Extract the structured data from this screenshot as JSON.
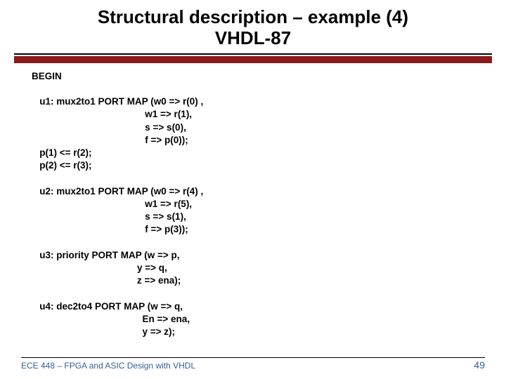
{
  "title_line1": "Structural description – example (4)",
  "title_line2": "VHDL-87",
  "colors": {
    "accent_bar": "#8b1a1a",
    "thin_rule": "#000000",
    "footer_text": "#376092",
    "body_text": "#000000",
    "background": "#ffffff"
  },
  "fonts": {
    "title_size_pt": 26,
    "body_size_pt": 13.5,
    "footer_size_pt": 12,
    "pagenum_size_pt": 14,
    "weight": "bold"
  },
  "code": {
    "begin": "BEGIN",
    "u1_l1": "   u1: mux2to1 PORT MAP (w0 => r(0) ,",
    "u1_l2": "                                           w1 => r(1),",
    "u1_l3": "                                           s => s(0),",
    "u1_l4": "                                           f => p(0));",
    "p1": "   p(1) <= r(2);",
    "p2": "   p(2) <= r(3);",
    "u2_l1": "   u2: mux2to1 PORT MAP (w0 => r(4) ,",
    "u2_l2": "                                           w1 => r(5),",
    "u2_l3": "                                           s => s(1),",
    "u2_l4": "                                           f => p(3));",
    "u3_l1": "   u3: priority PORT MAP (w => p,",
    "u3_l2": "                                        y => q,",
    "u3_l3": "                                        z => ena);",
    "u4_l1": "   u4: dec2to4 PORT MAP (w => q,",
    "u4_l2": "                                          En => ena,",
    "u4_l3": "                                          y => z);"
  },
  "footer": {
    "course": "ECE 448 – FPGA and ASIC Design with VHDL",
    "pagenum": "49"
  }
}
